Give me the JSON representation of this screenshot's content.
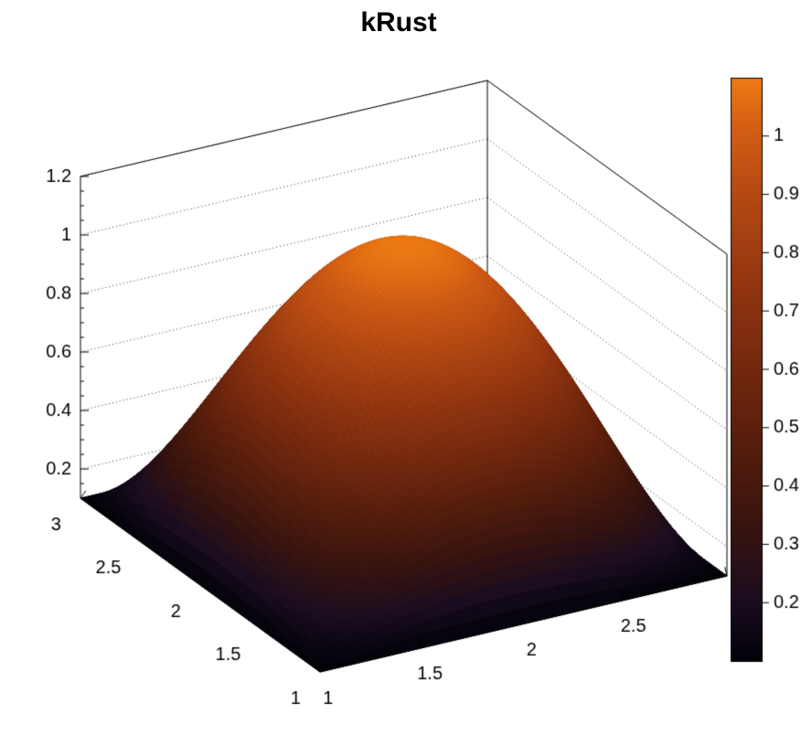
{
  "page": {
    "background": "#ffffff"
  },
  "chart_data": {
    "type": "surface",
    "title": "kRust",
    "palette_name": "kRust",
    "x_range": [
      1,
      3
    ],
    "y_range": [
      1,
      3
    ],
    "x_axis": {
      "major_ticks": [
        1,
        1.5,
        2,
        2.5,
        3
      ],
      "labels": [
        "1",
        "1.5",
        "2",
        "2.5",
        "3"
      ],
      "minor_step": 0.05
    },
    "y_axis": {
      "major_ticks": [
        1,
        1.5,
        2,
        2.5,
        3
      ],
      "labels": [
        "1",
        "1.5",
        "2",
        "2.5",
        "3"
      ],
      "minor_step": 0.05
    },
    "z_axis": {
      "min": 0.1,
      "max": 1.2,
      "major_ticks": [
        0.2,
        0.4,
        0.6,
        0.8,
        1,
        1.2
      ],
      "labels": [
        "0.2",
        "0.4",
        "0.6",
        "0.8",
        "1",
        "1.2"
      ],
      "minor_step": 0.05
    },
    "color_axis": {
      "min": 0.1,
      "max": 1.1,
      "ticks": [
        0.2,
        0.3,
        0.4,
        0.5,
        0.6,
        0.7,
        0.8,
        0.9,
        1
      ],
      "labels": [
        "0.2",
        "0.3",
        "0.4",
        "0.5",
        "0.6",
        "0.7",
        "0.8",
        "0.9",
        "1"
      ]
    },
    "z_formula": "z(x,y) = 0.1 + (1 - (x-2)^2) * (1 - (y-2)^2)",
    "surface_params": {
      "base": 0.1,
      "cx": 2,
      "cy": 2
    },
    "grid": {
      "x": [
        1,
        1.25,
        1.5,
        1.75,
        2,
        2.25,
        2.5,
        2.75,
        3
      ],
      "y": [
        1,
        1.25,
        1.5,
        1.75,
        2,
        2.25,
        2.5,
        2.75,
        3
      ],
      "z": [
        [
          0.1,
          0.1,
          0.1,
          0.1,
          0.1,
          0.1,
          0.1,
          0.1,
          0.1
        ],
        [
          0.1,
          0.2914,
          0.4281,
          0.5102,
          0.5375,
          0.5102,
          0.4281,
          0.2914,
          0.1
        ],
        [
          0.1,
          0.4281,
          0.6625,
          0.8031,
          0.85,
          0.8031,
          0.6625,
          0.4281,
          0.1
        ],
        [
          0.1,
          0.5102,
          0.8031,
          0.9789,
          1.0375,
          0.9789,
          0.8031,
          0.5102,
          0.1
        ],
        [
          0.1,
          0.5375,
          0.85,
          1.0375,
          1.1,
          1.0375,
          0.85,
          0.5375,
          0.1
        ],
        [
          0.1,
          0.5102,
          0.8031,
          0.9789,
          1.0375,
          0.9789,
          0.8031,
          0.5102,
          0.1
        ],
        [
          0.1,
          0.4281,
          0.6625,
          0.8031,
          0.85,
          0.8031,
          0.6625,
          0.4281,
          0.1
        ],
        [
          0.1,
          0.2914,
          0.4281,
          0.5102,
          0.5375,
          0.5102,
          0.4281,
          0.2914,
          0.1
        ],
        [
          0.1,
          0.1,
          0.1,
          0.1,
          0.1,
          0.1,
          0.1,
          0.1,
          0.1
        ]
      ]
    },
    "palette_stops": [
      {
        "t": 0.0,
        "color": "#020208"
      },
      {
        "t": 0.1,
        "color": "#1a0c20"
      },
      {
        "t": 0.22,
        "color": "#36130f"
      },
      {
        "t": 0.35,
        "color": "#511c0c"
      },
      {
        "t": 0.5,
        "color": "#73280e"
      },
      {
        "t": 0.65,
        "color": "#933610"
      },
      {
        "t": 0.8,
        "color": "#b54a13"
      },
      {
        "t": 0.9,
        "color": "#cf5b15"
      },
      {
        "t": 1.0,
        "color": "#ee7a14"
      }
    ]
  }
}
